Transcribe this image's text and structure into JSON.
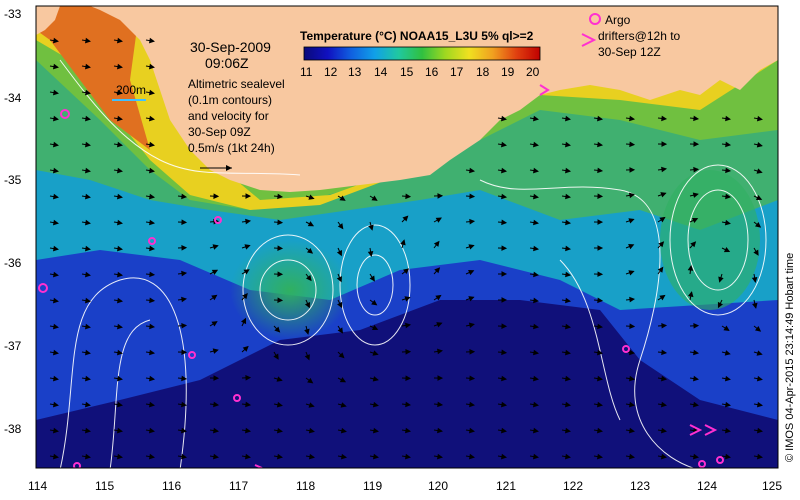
{
  "map": {
    "date": "30-Sep-2009",
    "time": "09:06Z",
    "scale_label": "200m",
    "altimetry_lines": [
      "Altimetric sealevel",
      "(0.1m contours)",
      "and velocity for",
      "30-Sep 09Z",
      "0.5m/s (1kt 24h)"
    ],
    "colorbar_title": "Temperature (°C) NOAA15_L3U 5% ql>=2",
    "colorbar_ticks": [
      "11",
      "12",
      "13",
      "14",
      "15",
      "16",
      "17",
      "18",
      "19",
      "20"
    ],
    "argo_lines": [
      "Argo",
      "drifters@12h to",
      "30-Sep 12Z"
    ],
    "credit": "© IMOS 04-Apr-2015 23:14:49 Hobart time",
    "lat_ticks": [
      "-33",
      "-34",
      "-35",
      "-36",
      "-37",
      "-38"
    ],
    "lon_ticks": [
      "114",
      "115",
      "116",
      "117",
      "118",
      "119",
      "120",
      "121",
      "122",
      "123",
      "124",
      "125"
    ],
    "colors": {
      "land": "#f8c8a0",
      "argo": "#ff30d0",
      "contour": "#ffffff",
      "scale_line": "#40c0ff"
    }
  }
}
